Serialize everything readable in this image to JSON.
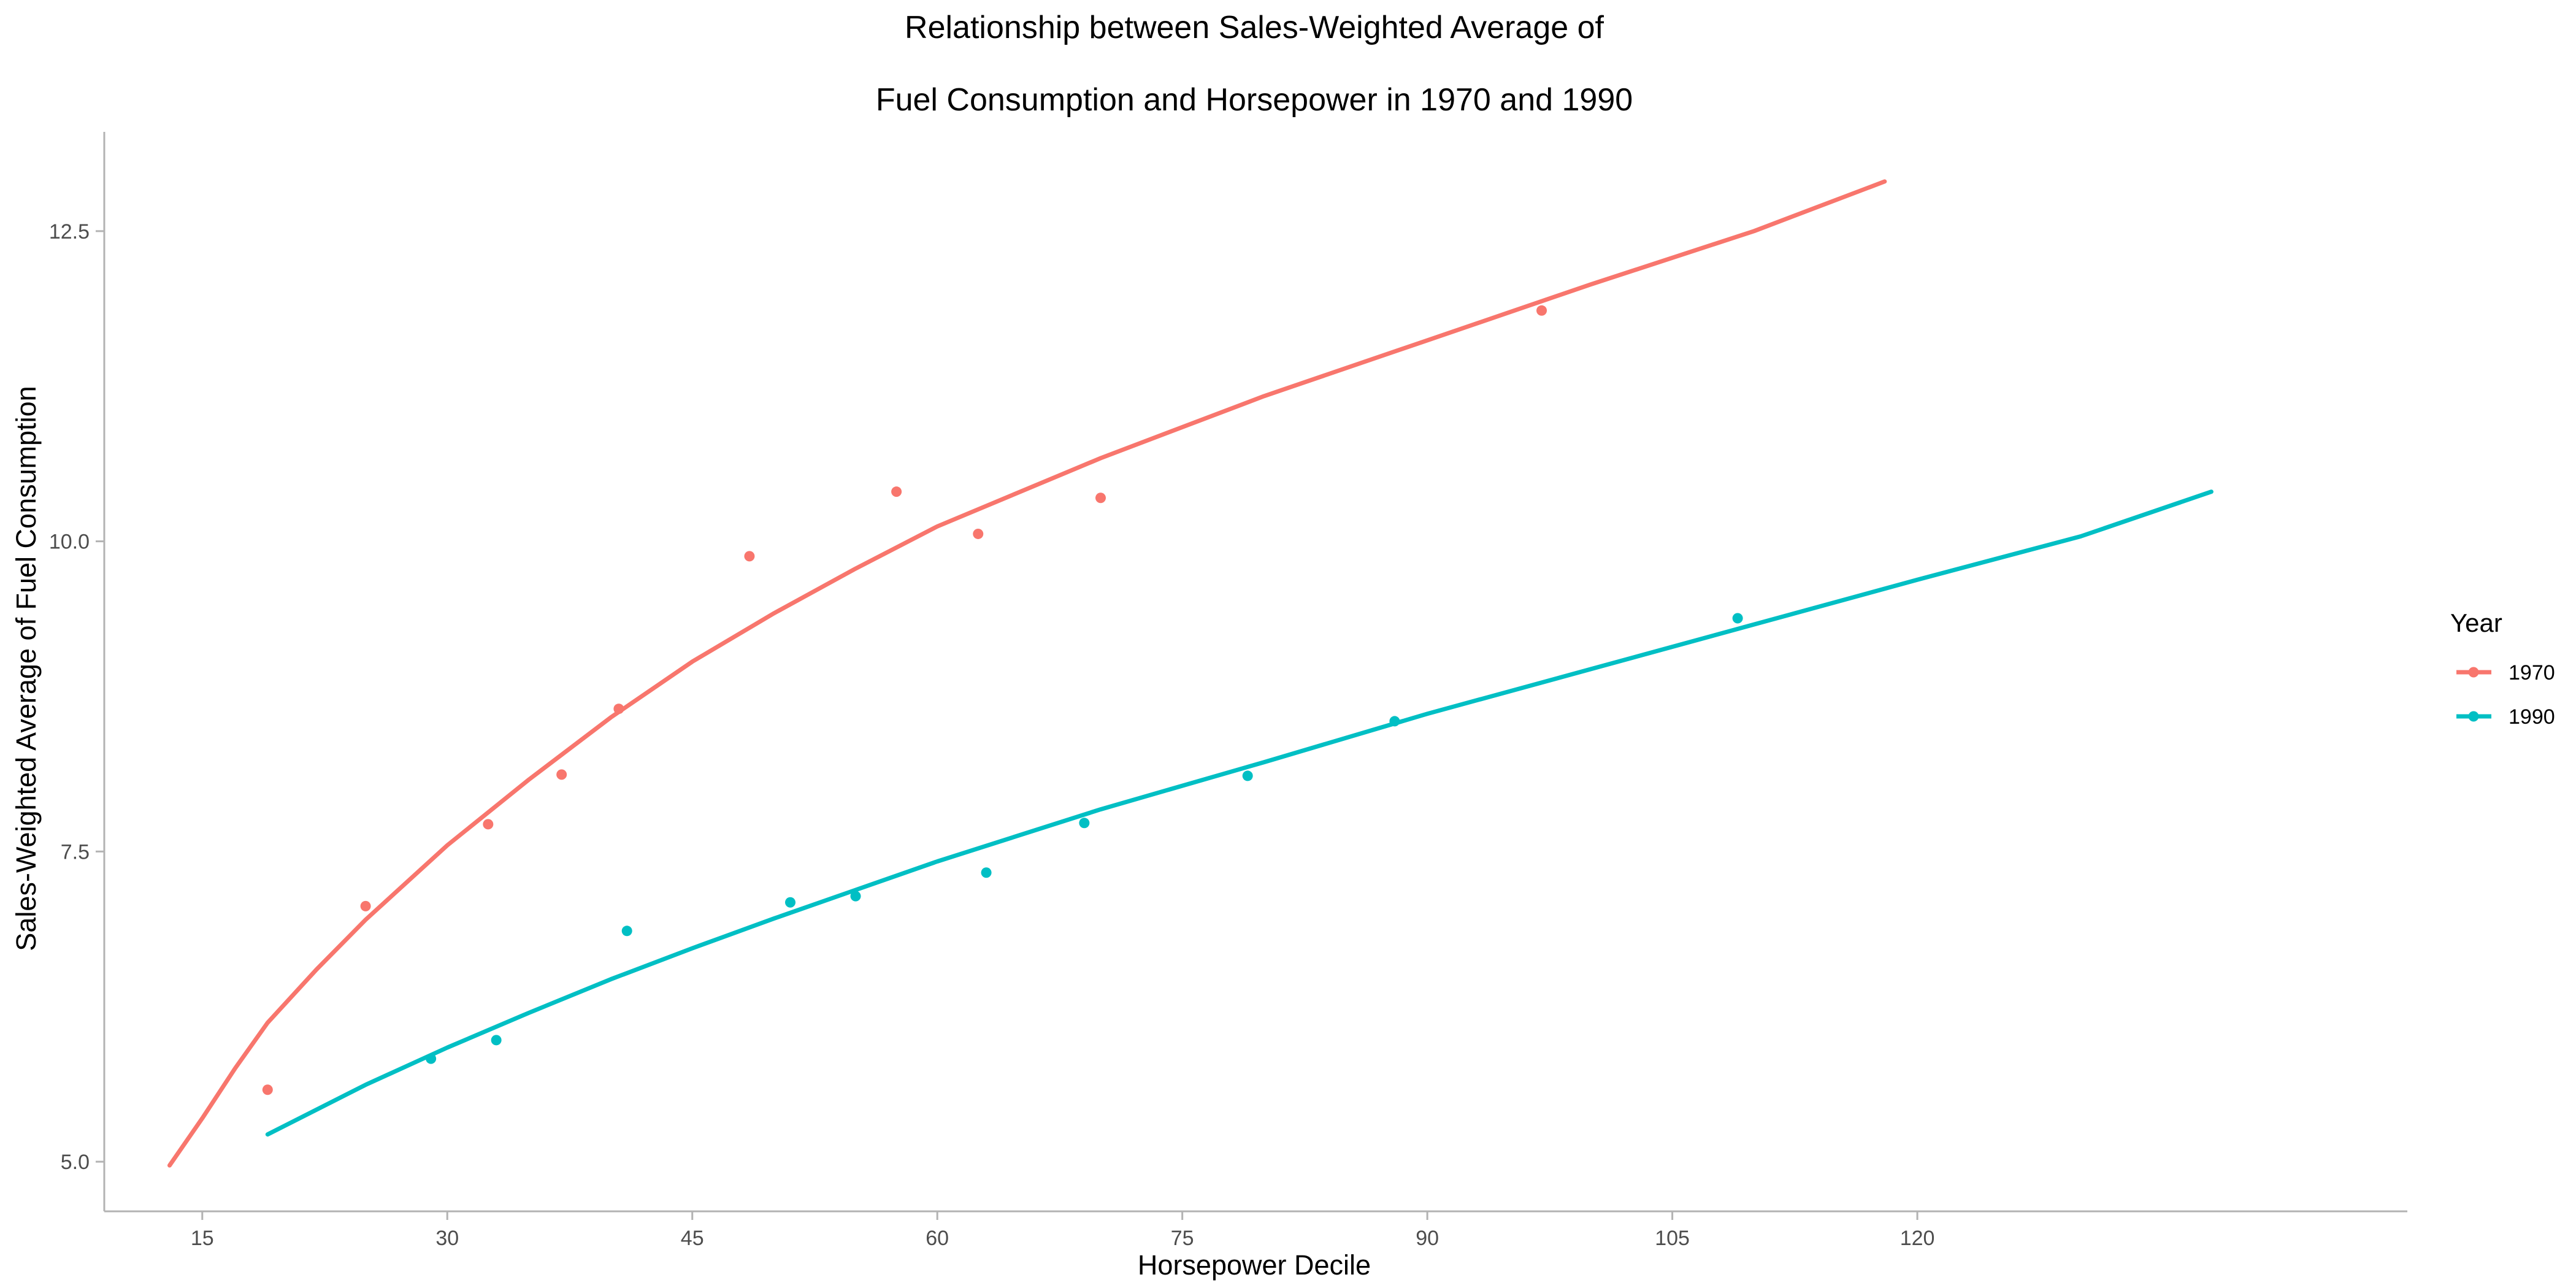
{
  "chart_data": {
    "type": "scatter",
    "title_lines": [
      "Relationship between Sales-Weighted Average of",
      "Fuel Consumption and Horsepower in 1970 and 1990"
    ],
    "xlabel": "Horsepower Decile",
    "ylabel": "Sales-Weighted Average of Fuel Consumption",
    "xlim": [
      9,
      150
    ],
    "ylim": [
      4.6,
      13.3
    ],
    "x_ticks": [
      {
        "value": 15,
        "label": "15"
      },
      {
        "value": 30,
        "label": "30"
      },
      {
        "value": 45,
        "label": "45"
      },
      {
        "value": 60,
        "label": "60"
      },
      {
        "value": 75,
        "label": "75"
      },
      {
        "value": 90,
        "label": "90"
      },
      {
        "value": 105,
        "label": "105"
      },
      {
        "value": 120,
        "label": "120"
      }
    ],
    "y_ticks": [
      {
        "value": 5.0,
        "label": "5.0"
      },
      {
        "value": 7.5,
        "label": "7.5"
      },
      {
        "value": 10.0,
        "label": "10.0"
      },
      {
        "value": 12.5,
        "label": "12.5"
      }
    ],
    "grid": false,
    "legend": {
      "title": "Year",
      "position": "right"
    },
    "series": [
      {
        "name": "1970",
        "color": "#F8766D",
        "points": [
          {
            "x": 19,
            "y": 5.58
          },
          {
            "x": 25,
            "y": 7.06
          },
          {
            "x": 32.5,
            "y": 7.72
          },
          {
            "x": 37,
            "y": 8.12
          },
          {
            "x": 40.5,
            "y": 8.65
          },
          {
            "x": 48.5,
            "y": 9.88
          },
          {
            "x": 57.5,
            "y": 10.4
          },
          {
            "x": 62.5,
            "y": 10.06
          },
          {
            "x": 70,
            "y": 10.35
          },
          {
            "x": 97,
            "y": 11.86
          }
        ],
        "fit": [
          {
            "x": 13,
            "y": 4.97
          },
          {
            "x": 15,
            "y": 5.35
          },
          {
            "x": 17,
            "y": 5.75
          },
          {
            "x": 19,
            "y": 6.12
          },
          {
            "x": 22,
            "y": 6.55
          },
          {
            "x": 25,
            "y": 6.95
          },
          {
            "x": 30,
            "y": 7.55
          },
          {
            "x": 35,
            "y": 8.08
          },
          {
            "x": 40,
            "y": 8.58
          },
          {
            "x": 45,
            "y": 9.03
          },
          {
            "x": 50,
            "y": 9.42
          },
          {
            "x": 55,
            "y": 9.78
          },
          {
            "x": 60,
            "y": 10.12
          },
          {
            "x": 70,
            "y": 10.67
          },
          {
            "x": 80,
            "y": 11.17
          },
          {
            "x": 90,
            "y": 11.62
          },
          {
            "x": 100,
            "y": 12.07
          },
          {
            "x": 110,
            "y": 12.5
          },
          {
            "x": 118,
            "y": 12.9
          }
        ]
      },
      {
        "name": "1990",
        "color": "#00BFC4",
        "points": [
          {
            "x": 29,
            "y": 5.83
          },
          {
            "x": 33,
            "y": 5.98
          },
          {
            "x": 41,
            "y": 6.86
          },
          {
            "x": 51,
            "y": 7.09
          },
          {
            "x": 55,
            "y": 7.14
          },
          {
            "x": 63,
            "y": 7.33
          },
          {
            "x": 69,
            "y": 7.73
          },
          {
            "x": 79,
            "y": 8.11
          },
          {
            "x": 88,
            "y": 8.55
          },
          {
            "x": 109,
            "y": 9.38
          }
        ],
        "fit": [
          {
            "x": 19,
            "y": 5.22
          },
          {
            "x": 25,
            "y": 5.62
          },
          {
            "x": 30,
            "y": 5.92
          },
          {
            "x": 35,
            "y": 6.2
          },
          {
            "x": 40,
            "y": 6.47
          },
          {
            "x": 45,
            "y": 6.72
          },
          {
            "x": 50,
            "y": 6.96
          },
          {
            "x": 55,
            "y": 7.19
          },
          {
            "x": 60,
            "y": 7.42
          },
          {
            "x": 70,
            "y": 7.84
          },
          {
            "x": 80,
            "y": 8.22
          },
          {
            "x": 90,
            "y": 8.61
          },
          {
            "x": 100,
            "y": 8.97
          },
          {
            "x": 110,
            "y": 9.33
          },
          {
            "x": 120,
            "y": 9.69
          },
          {
            "x": 130,
            "y": 10.04
          },
          {
            "x": 138,
            "y": 10.4
          }
        ]
      }
    ]
  }
}
